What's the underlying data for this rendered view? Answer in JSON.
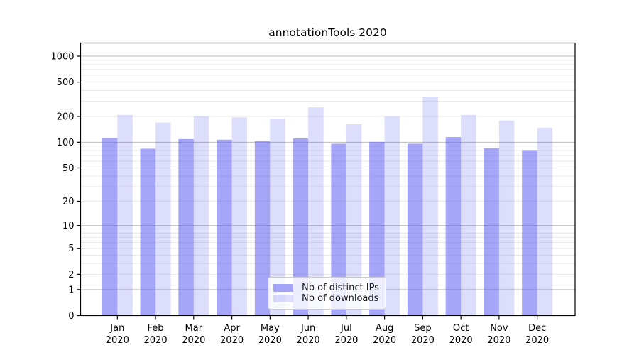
{
  "chart_data": {
    "type": "bar",
    "title": "annotationTools 2020",
    "categories": [
      "Jan",
      "Feb",
      "Mar",
      "Apr",
      "May",
      "Jun",
      "Jul",
      "Aug",
      "Sep",
      "Oct",
      "Nov",
      "Dec"
    ],
    "category_sublabel": "2020",
    "series": [
      {
        "name": "Nb of distinct IPs",
        "color": "rgba(99,99,243,0.57)",
        "values": [
          112,
          84,
          109,
          107,
          103,
          111,
          96,
          101,
          96,
          115,
          85,
          81
        ]
      },
      {
        "name": "Nb of downloads",
        "color": "rgba(99,99,243,0.22)",
        "values": [
          208,
          170,
          200,
          195,
          188,
          255,
          162,
          199,
          340,
          208,
          179,
          148
        ]
      }
    ],
    "yscale": "symlog-log1p",
    "yticks": [
      0,
      1,
      2,
      5,
      10,
      20,
      50,
      100,
      200,
      500,
      1000
    ],
    "major_gridlines": [
      1,
      10,
      100,
      1000
    ],
    "ylim": [
      0,
      1400
    ],
    "grid": "on",
    "legend_position": "bottom-center",
    "colors": {
      "major_grid": "#bdbdbd",
      "minor_grid": "#e8e8e8",
      "axis": "#000000",
      "text": "#000000"
    }
  }
}
